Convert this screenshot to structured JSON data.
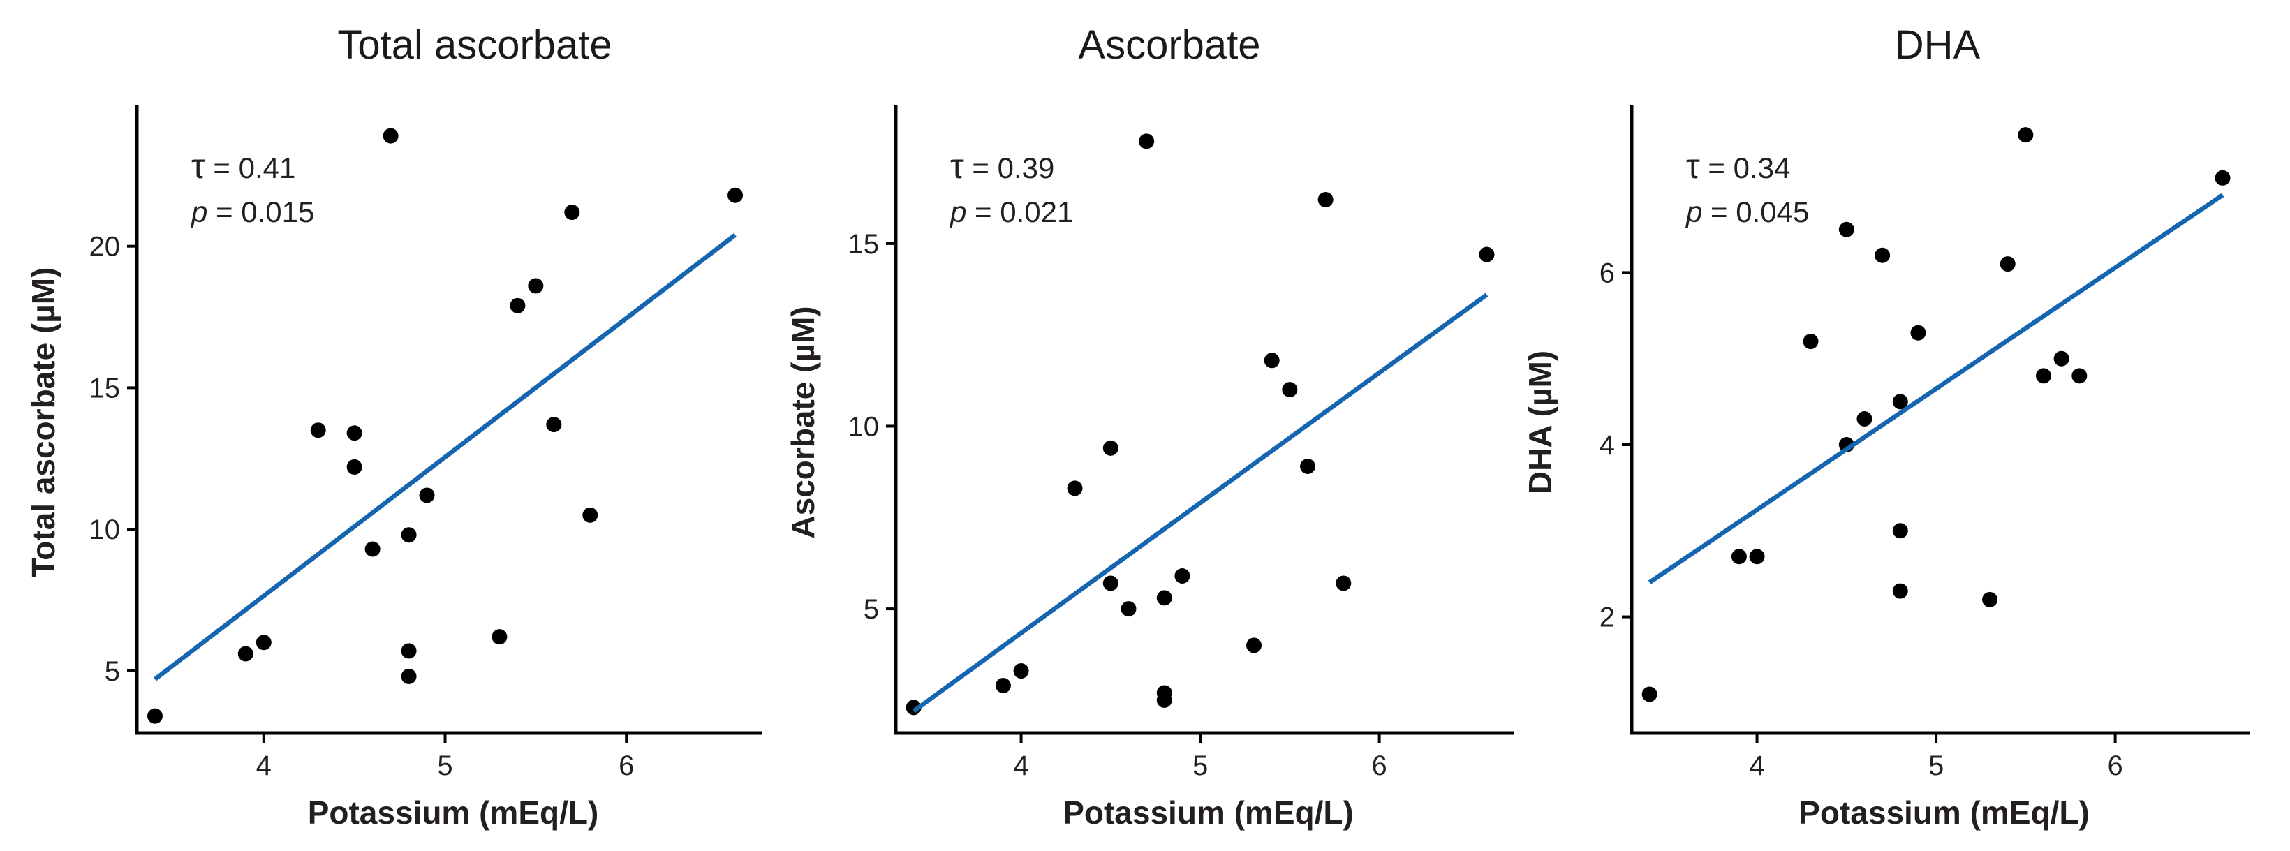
{
  "colors": {
    "fit_line": "#1565b0",
    "points": "#000000",
    "axes": "#000000"
  },
  "chart_data": [
    {
      "type": "scatter",
      "title": "Total ascorbate",
      "xlabel": "Potassium (mEq/L)",
      "ylabel": "Total ascorbate (µM)",
      "xlim": [
        3.3,
        6.75
      ],
      "ylim": [
        2.8,
        25.0
      ],
      "xticks": [
        4,
        5,
        6
      ],
      "yticks": [
        5,
        10,
        15,
        20
      ],
      "stats": {
        "tau_symbol": "τ",
        "tau_value": " = 0.41",
        "p_symbol": "p",
        "p_value": " = 0.015"
      },
      "fit": {
        "x": [
          3.4,
          6.6
        ],
        "y": [
          4.7,
          20.4
        ]
      },
      "points": [
        {
          "x": 3.4,
          "y": 3.4
        },
        {
          "x": 3.9,
          "y": 5.6
        },
        {
          "x": 4.0,
          "y": 6.0
        },
        {
          "x": 4.3,
          "y": 13.5
        },
        {
          "x": 4.5,
          "y": 13.4
        },
        {
          "x": 4.5,
          "y": 12.2
        },
        {
          "x": 4.6,
          "y": 9.3
        },
        {
          "x": 4.7,
          "y": 23.9
        },
        {
          "x": 4.8,
          "y": 9.8
        },
        {
          "x": 4.8,
          "y": 5.7
        },
        {
          "x": 4.8,
          "y": 4.8
        },
        {
          "x": 4.9,
          "y": 11.2
        },
        {
          "x": 5.3,
          "y": 6.2
        },
        {
          "x": 5.4,
          "y": 17.9
        },
        {
          "x": 5.5,
          "y": 18.6
        },
        {
          "x": 5.6,
          "y": 13.7
        },
        {
          "x": 5.7,
          "y": 21.2
        },
        {
          "x": 5.8,
          "y": 10.5
        },
        {
          "x": 6.6,
          "y": 21.8
        }
      ]
    },
    {
      "type": "scatter",
      "title": "Ascorbate",
      "xlabel": "Potassium (mEq/L)",
      "ylabel": "Ascorbate (µM)",
      "xlim": [
        3.3,
        6.75
      ],
      "ylim": [
        1.6,
        18.8
      ],
      "xticks": [
        4,
        5,
        6
      ],
      "yticks": [
        5,
        10,
        15
      ],
      "stats": {
        "tau_symbol": "τ",
        "tau_value": " = 0.39",
        "p_symbol": "p",
        "p_value": " = 0.021"
      },
      "fit": {
        "x": [
          3.4,
          6.6
        ],
        "y": [
          2.2,
          13.6
        ]
      },
      "points": [
        {
          "x": 3.4,
          "y": 2.3
        },
        {
          "x": 3.9,
          "y": 2.9
        },
        {
          "x": 4.0,
          "y": 3.3
        },
        {
          "x": 4.3,
          "y": 8.3
        },
        {
          "x": 4.5,
          "y": 9.4
        },
        {
          "x": 4.5,
          "y": 5.7
        },
        {
          "x": 4.6,
          "y": 5.0
        },
        {
          "x": 4.7,
          "y": 17.8
        },
        {
          "x": 4.8,
          "y": 5.3
        },
        {
          "x": 4.8,
          "y": 2.7
        },
        {
          "x": 4.8,
          "y": 2.5
        },
        {
          "x": 4.9,
          "y": 5.9
        },
        {
          "x": 5.3,
          "y": 4.0
        },
        {
          "x": 5.4,
          "y": 11.8
        },
        {
          "x": 5.5,
          "y": 11.0
        },
        {
          "x": 5.6,
          "y": 8.9
        },
        {
          "x": 5.7,
          "y": 16.2
        },
        {
          "x": 5.8,
          "y": 5.7
        },
        {
          "x": 6.6,
          "y": 14.7
        }
      ]
    },
    {
      "type": "scatter",
      "title": "DHA",
      "xlabel": "Potassium (mEq/L)",
      "ylabel": "DHA (µM)",
      "xlim": [
        3.3,
        6.75
      ],
      "ylim": [
        0.65,
        7.95
      ],
      "xticks": [
        4,
        5,
        6
      ],
      "yticks": [
        2,
        4,
        6
      ],
      "stats": {
        "tau_symbol": "τ",
        "tau_value": " = 0.34",
        "p_symbol": "p",
        "p_value": " = 0.045"
      },
      "fit": {
        "x": [
          3.4,
          6.6
        ],
        "y": [
          2.4,
          6.9
        ]
      },
      "points": [
        {
          "x": 3.4,
          "y": 1.1
        },
        {
          "x": 3.9,
          "y": 2.7
        },
        {
          "x": 4.0,
          "y": 2.7
        },
        {
          "x": 4.3,
          "y": 5.2
        },
        {
          "x": 4.5,
          "y": 6.5
        },
        {
          "x": 4.5,
          "y": 4.0
        },
        {
          "x": 4.6,
          "y": 4.3
        },
        {
          "x": 4.7,
          "y": 6.2
        },
        {
          "x": 4.8,
          "y": 4.5
        },
        {
          "x": 4.8,
          "y": 3.0
        },
        {
          "x": 4.8,
          "y": 2.3
        },
        {
          "x": 4.9,
          "y": 5.3
        },
        {
          "x": 5.3,
          "y": 2.2
        },
        {
          "x": 5.4,
          "y": 6.1
        },
        {
          "x": 5.5,
          "y": 7.6
        },
        {
          "x": 5.6,
          "y": 4.8
        },
        {
          "x": 5.7,
          "y": 5.0
        },
        {
          "x": 5.8,
          "y": 4.8
        },
        {
          "x": 6.6,
          "y": 7.1
        }
      ]
    }
  ]
}
